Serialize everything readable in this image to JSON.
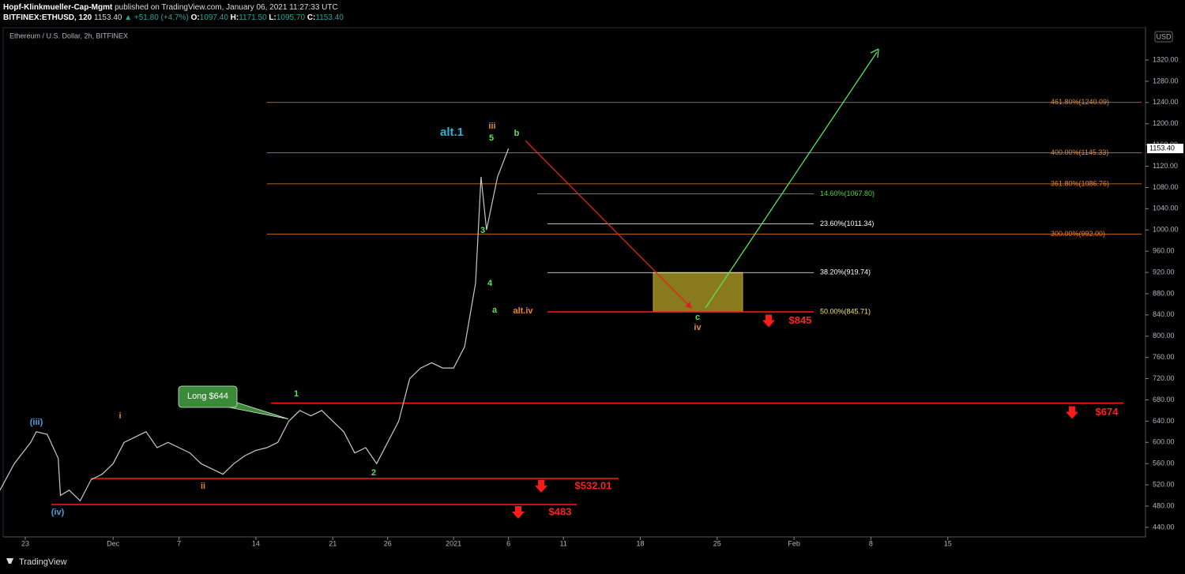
{
  "header": {
    "author": "Hopf-Klinkmueller-Cap-Mgmt",
    "published": "published on TradingView.com, January 06, 2021 11:27:33 UTC",
    "symbol": "BITFINEX:ETHUSD, 120",
    "price": "1153.40",
    "change": "▲ +51.80 (+4.7%)",
    "open_label": "O:",
    "open": "1097.40",
    "high_label": "H:",
    "high": "1171.50",
    "low_label": "L:",
    "low": "1095.70",
    "close_label": "C:",
    "close": "1153.40"
  },
  "footer": {
    "brand": "TradingView"
  },
  "chart_data": {
    "type": "line",
    "title": "Ethereum / U.S. Dollar, 2h, BITFINEX",
    "currency": "USD",
    "color": "#c8c8c8",
    "x": [
      -2.3,
      -1,
      0.5,
      1,
      2,
      3,
      3.2,
      4,
      5,
      6,
      7,
      8,
      9,
      10,
      11,
      12,
      13,
      14,
      15,
      16,
      17,
      18,
      19,
      20,
      21,
      22,
      23,
      24,
      25,
      26,
      27,
      28,
      29,
      30,
      31,
      32,
      33,
      34,
      35,
      36,
      37,
      38,
      39,
      40,
      41,
      41.5,
      42,
      42.5,
      43,
      44
    ],
    "values": [
      510,
      560,
      600,
      620,
      615,
      570,
      500,
      510,
      490,
      530,
      540,
      560,
      600,
      610,
      620,
      590,
      600,
      590,
      580,
      560,
      550,
      540,
      560,
      575,
      585,
      590,
      600,
      640,
      660,
      650,
      660,
      640,
      620,
      580,
      590,
      560,
      600,
      640,
      720,
      740,
      750,
      740,
      740,
      780,
      900,
      1100,
      1000,
      1050,
      1100,
      1153.4
    ],
    "xlim": [
      -2.3,
      102
    ],
    "ylim": [
      422,
      1381
    ],
    "xticks": [
      {
        "value": 0,
        "label": "23"
      },
      {
        "value": 8,
        "label": "Dec"
      },
      {
        "value": 14,
        "label": "7"
      },
      {
        "value": 21,
        "label": "14"
      },
      {
        "value": 28,
        "label": "21"
      },
      {
        "value": 33,
        "label": "26"
      },
      {
        "value": 39,
        "label": "2021"
      },
      {
        "value": 44,
        "label": "6"
      },
      {
        "value": 49,
        "label": "11"
      },
      {
        "value": 56,
        "label": "18"
      },
      {
        "value": 63,
        "label": "25"
      },
      {
        "value": 70,
        "label": "Feb"
      },
      {
        "value": 77,
        "label": "8"
      },
      {
        "value": 84,
        "label": "15"
      }
    ],
    "yticks": [
      {
        "value": 440,
        "label": "440.00"
      },
      {
        "value": 480,
        "label": "480.00"
      },
      {
        "value": 520,
        "label": "520.00"
      },
      {
        "value": 560,
        "label": "560.00"
      },
      {
        "value": 600,
        "label": "600.00"
      },
      {
        "value": 640,
        "label": "640.00"
      },
      {
        "value": 680,
        "label": "680.00"
      },
      {
        "value": 720,
        "label": "720.00"
      },
      {
        "value": 760,
        "label": "760.00"
      },
      {
        "value": 800,
        "label": "800.00"
      },
      {
        "value": 840,
        "label": "840.00"
      },
      {
        "value": 880,
        "label": "880.00"
      },
      {
        "value": 920,
        "label": "920.00"
      },
      {
        "value": 960,
        "label": "960.00"
      },
      {
        "value": 1000,
        "label": "1000.00"
      },
      {
        "value": 1040,
        "label": "1040.00"
      },
      {
        "value": 1080,
        "label": "1080.00"
      },
      {
        "value": 1120,
        "label": "1120.00"
      },
      {
        "value": 1160,
        "label": "1160.00"
      },
      {
        "value": 1200,
        "label": "1200.00"
      },
      {
        "value": 1240,
        "label": "1240.00"
      },
      {
        "value": 1280,
        "label": "1280.00"
      },
      {
        "value": 1320,
        "label": "1320.00"
      }
    ],
    "last_price": {
      "value": 1153.4,
      "label": "1153.40"
    },
    "fib_levels": [
      {
        "value": 1240.09,
        "label": "461.80%(1240.09)"
      },
      {
        "value": 1145.33,
        "label": "400.00%(1145.33)"
      },
      {
        "value": 1086.76,
        "label": "361.80%(1086.76)"
      },
      {
        "value": 992,
        "label": "300.00%(992.00)"
      }
    ],
    "retracements": [
      {
        "value": 1067.8,
        "label": "14.60%(1067.80)",
        "color": "#3fd63f"
      },
      {
        "value": 1011.34,
        "label": "23.60%(1011.34)",
        "color": "#ffffff"
      },
      {
        "value": 919.74,
        "label": "38.20%(919.74)",
        "color": "#ffffff"
      },
      {
        "value": 845.71,
        "label": "50.00%(845.71)",
        "color": "#f5e663"
      }
    ],
    "support_levels": [
      {
        "value": 845,
        "label": "$845"
      },
      {
        "value": 674,
        "label": "$674"
      },
      {
        "value": 532.01,
        "label": "$532.01"
      },
      {
        "value": 483,
        "label": "$483"
      }
    ],
    "callout": {
      "value": 644,
      "label": "Long $644"
    },
    "wave_labels": [
      "(iii)",
      "i",
      "ii",
      "(iv)",
      "1",
      "2",
      "3",
      "4",
      "5",
      "iii",
      "a",
      "b",
      "alt.1",
      "alt.iv",
      "c",
      "iv"
    ]
  }
}
